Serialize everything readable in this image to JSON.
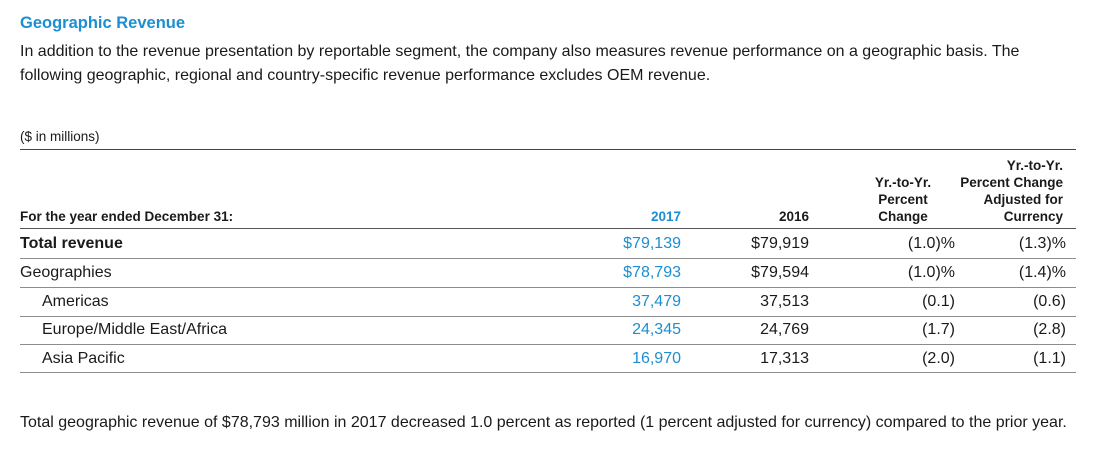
{
  "section": {
    "title": "Geographic Revenue",
    "intro": "In addition to the revenue presentation by reportable segment, the company also measures revenue performance on a geographic basis. The following geographic, regional and country-specific revenue performance excludes OEM revenue.",
    "unit_note": "($ in millions)",
    "closing": "Total geographic revenue of $78,793 million in 2017 decreased 1.0 percent as reported (1 percent adjusted for currency) compared to the prior year."
  },
  "table": {
    "headers": {
      "label": "For the year ended December 31:",
      "col_2017": "2017",
      "col_2016": "2016",
      "col_pct_line1": "Yr.-to-Yr.",
      "col_pct_line2": "Percent",
      "col_pct_line3": "Change",
      "col_adj_line1": "Yr.-to-Yr.",
      "col_adj_line2": "Percent Change",
      "col_adj_line3": "Adjusted for",
      "col_adj_line4": "Currency"
    },
    "rows": [
      {
        "label": "Total revenue",
        "v2017": "$79,139",
        "v2016": "$79,919",
        "pct": "(1.0)%",
        "adj": "(1.3)%"
      },
      {
        "label": "Geographies",
        "v2017": "$78,793",
        "v2016": "$79,594",
        "pct": "(1.0)%",
        "adj": "(1.4)%"
      },
      {
        "label": "Americas",
        "v2017": "37,479",
        "v2016": "37,513",
        "pct": "(0.1)",
        "adj": "(0.6)"
      },
      {
        "label": "Europe/Middle East/Africa",
        "v2017": "24,345",
        "v2016": "24,769",
        "pct": "(1.7)",
        "adj": "(2.8)"
      },
      {
        "label": "Asia Pacific",
        "v2017": "16,970",
        "v2016": "17,313",
        "pct": "(2.0)",
        "adj": "(1.1)"
      }
    ]
  },
  "colors": {
    "accent": "#1b8fd1",
    "text": "#1a1a1a",
    "rule": "#8c8c8c"
  }
}
